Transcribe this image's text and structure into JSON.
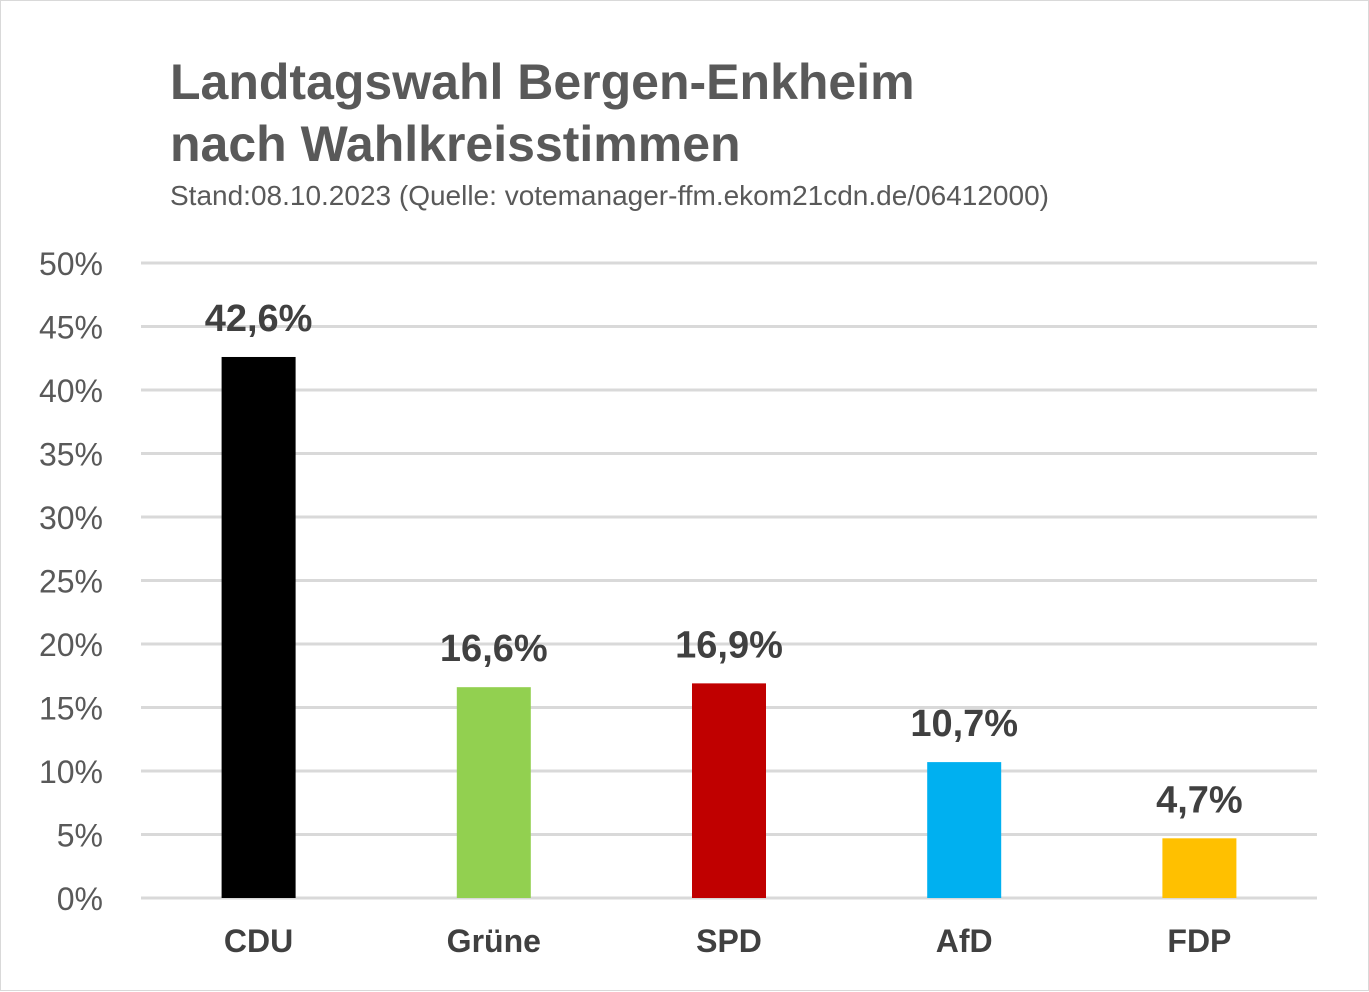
{
  "title_lines": [
    "Landtagswahl Bergen-Enkheim",
    "nach Wahlkreisstimmen"
  ],
  "subtitle": "Stand:08.10.2023 (Quelle: votemanager-ffm.ekom21cdn.de/06412000)",
  "chart_data": {
    "type": "bar",
    "title": "Landtagswahl Bergen-Enkheim nach Wahlkreisstimmen",
    "subtitle": "Stand:08.10.2023 (Quelle: votemanager-ffm.ekom21cdn.de/06412000)",
    "categories": [
      "CDU",
      "Grüne",
      "SPD",
      "AfD",
      "FDP"
    ],
    "values": [
      42.6,
      16.6,
      16.9,
      10.7,
      4.7
    ],
    "value_labels": [
      "42,6%",
      "16,6%",
      "16,9%",
      "10,7%",
      "4,7%"
    ],
    "colors": [
      "#000000",
      "#92d050",
      "#c00000",
      "#00b0f0",
      "#ffc000"
    ],
    "ylim": [
      0,
      50
    ],
    "yticks": [
      0,
      5,
      10,
      15,
      20,
      25,
      30,
      35,
      40,
      45,
      50
    ],
    "ytick_labels": [
      "0%",
      "5%",
      "10%",
      "15%",
      "20%",
      "25%",
      "30%",
      "35%",
      "40%",
      "45%",
      "50%"
    ],
    "xlabel": "",
    "ylabel": "",
    "grid": true,
    "legend": "none"
  }
}
